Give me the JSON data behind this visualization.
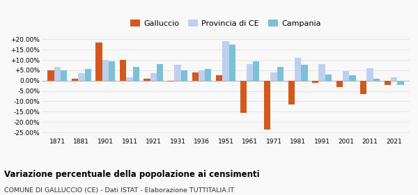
{
  "years": [
    1871,
    1881,
    1901,
    1911,
    1921,
    1931,
    1936,
    1951,
    1961,
    1971,
    1981,
    1991,
    2001,
    2011,
    2021
  ],
  "galluccio": [
    5.0,
    1.0,
    18.5,
    10.0,
    1.0,
    -0.5,
    4.0,
    2.5,
    -15.5,
    -23.5,
    -11.5,
    -1.0,
    -3.0,
    -6.5,
    -2.0
  ],
  "provincia_ce": [
    6.5,
    3.5,
    10.0,
    1.5,
    3.5,
    7.5,
    5.0,
    19.0,
    8.0,
    4.0,
    11.0,
    8.0,
    4.5,
    6.0,
    1.5
  ],
  "campania": [
    5.0,
    5.5,
    9.5,
    6.5,
    8.0,
    5.0,
    5.5,
    17.5,
    9.5,
    6.5,
    7.5,
    3.0,
    2.5,
    1.0,
    -2.0
  ],
  "color_galluccio": "#d4581e",
  "color_provincia": "#bdd0ee",
  "color_campania": "#7bbfd8",
  "title1": "Variazione percentuale della popolazione ai censimenti",
  "title2": "COMUNE DI GALLUCCIO (CE) - Dati ISTAT - Elaborazione TUTTITALIA.IT",
  "legend_labels": [
    "Galluccio",
    "Provincia di CE",
    "Campania"
  ],
  "ylim": [
    -27,
    22
  ],
  "yticks": [
    -25,
    -20,
    -15,
    -10,
    -5,
    0,
    5,
    10,
    15,
    20
  ],
  "background_color": "#f8f8f8",
  "grid_color": "#dddddd"
}
